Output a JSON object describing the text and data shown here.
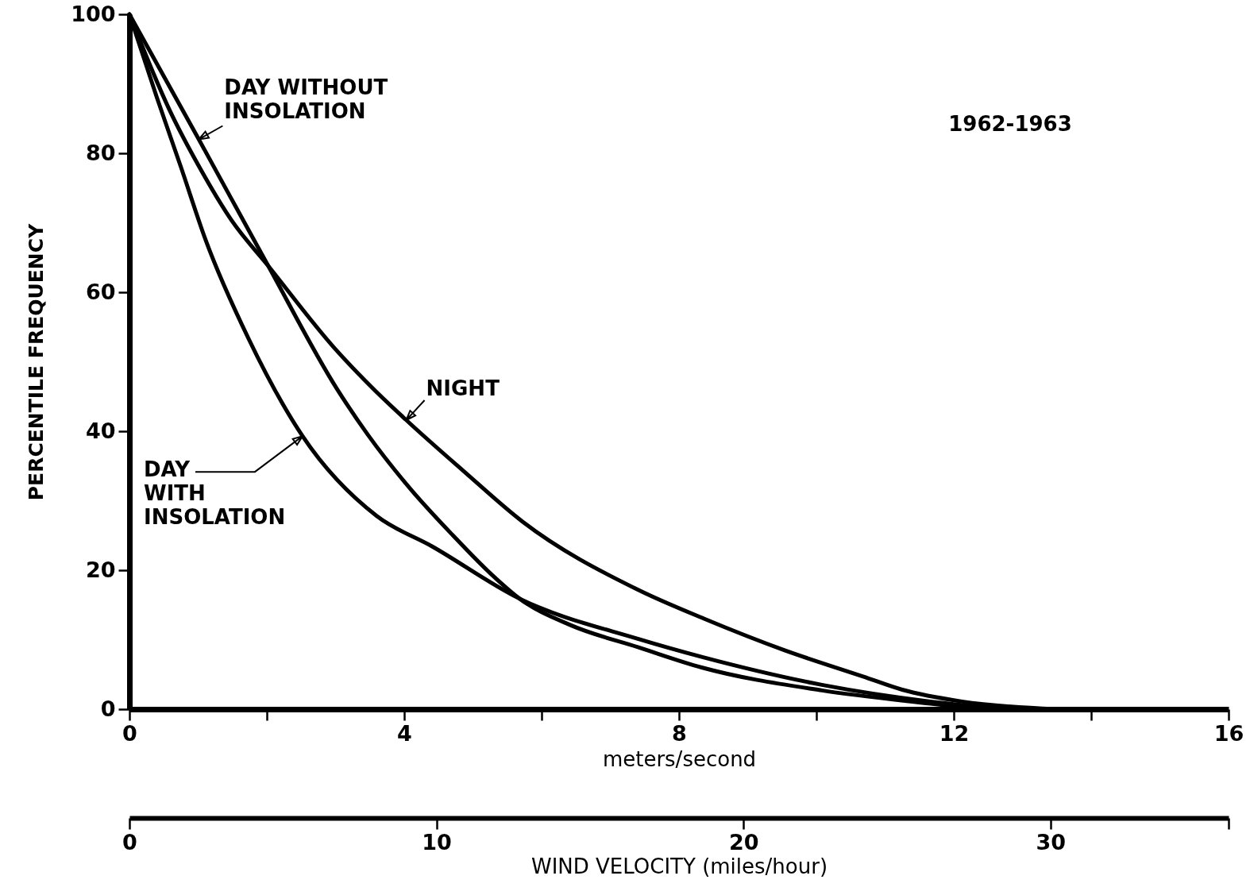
{
  "chart_data": {
    "type": "line",
    "xlabel": "meters/second",
    "ylabel": "PERCENTILE FREQUENCY",
    "x2label": "WIND VELOCITY (miles/hour)",
    "annotations": [
      "1962-1963"
    ],
    "xlim": [
      0,
      16
    ],
    "xticks": [
      0,
      {
        "value": 2,
        "label": null
      },
      4,
      {
        "value": 6,
        "label": null
      },
      8,
      {
        "value": 10,
        "label": null
      },
      12,
      {
        "value": 14,
        "label": null
      },
      16
    ],
    "ylim": [
      0,
      100
    ],
    "yticks": [
      0,
      20,
      40,
      60,
      80,
      100
    ],
    "x2lim": [
      0,
      35.8
    ],
    "x2ticks": [
      0,
      10,
      20,
      30,
      {
        "value": 35.8,
        "label": null
      }
    ],
    "legend": false,
    "series": [
      {
        "name": "DAY WITHOUT INSOLATION",
        "color": "#000000",
        "x": [
          0,
          1.01,
          2.02,
          3.02,
          3.47,
          4.09,
          4.71,
          5.28,
          5.68,
          6.42,
          7.41,
          8.33,
          10.08,
          11.66,
          12.4
        ],
        "values": [
          100,
          82.0,
          63.8,
          46.1,
          39.5,
          31.7,
          25.0,
          19.3,
          15.9,
          12.1,
          8.9,
          6.0,
          2.7,
          0.8,
          0
        ]
      },
      {
        "name": "NIGHT",
        "color": "#000000",
        "x": [
          0,
          0.58,
          1.03,
          1.49,
          2.02,
          2.99,
          3.56,
          4.03,
          4.86,
          5.72,
          7.4,
          8.37,
          9.53,
          10.68,
          11.25,
          12.12,
          13.48
        ],
        "values": [
          100,
          86.3,
          77.8,
          70.3,
          63.8,
          51.9,
          46.0,
          41.6,
          34.3,
          27.0,
          17.2,
          13.0,
          8.5,
          4.7,
          2.8,
          1.1,
          0
        ]
      },
      {
        "name": "DAY WITH INSOLATION",
        "color": "#000000",
        "x": [
          0,
          0.4,
          0.75,
          1.11,
          1.73,
          2.52,
          3.6,
          4.41,
          5.68,
          7.41,
          8.34,
          10.08,
          11.66,
          12.8
        ],
        "values": [
          100,
          88.0,
          78.0,
          67.5,
          53.4,
          39.3,
          27.8,
          23.4,
          15.9,
          10.1,
          7.5,
          3.5,
          1.1,
          0
        ]
      }
    ]
  }
}
